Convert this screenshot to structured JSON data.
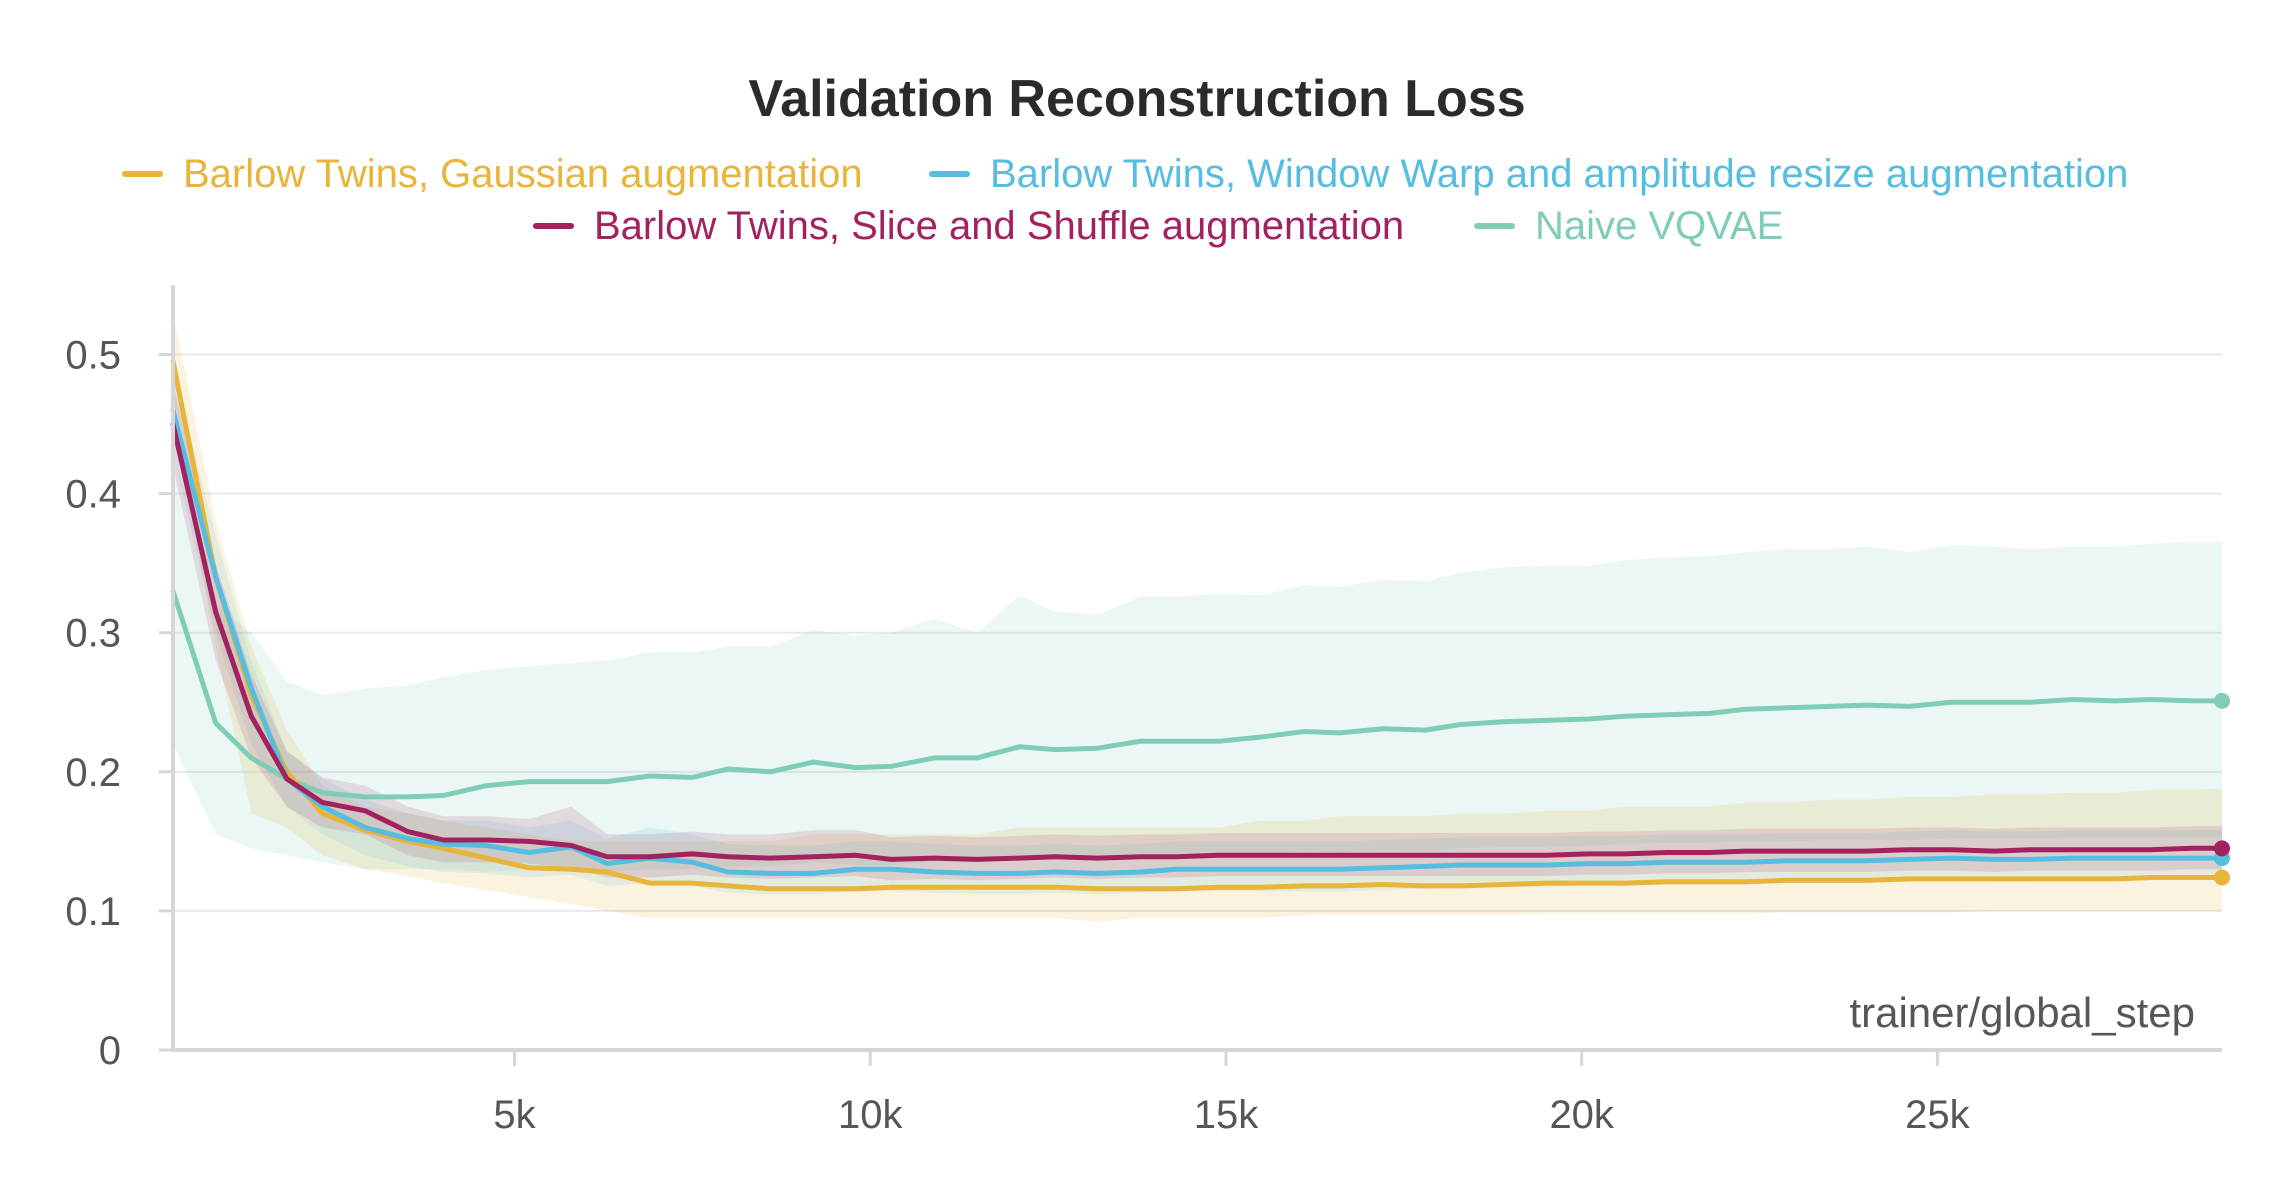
{
  "chart_data": {
    "type": "line",
    "title": "Validation Reconstruction Loss",
    "xlabel": "trainer/global_step",
    "ylabel": "",
    "xlim": [
      200,
      29000
    ],
    "ylim": [
      0,
      0.55
    ],
    "x_ticks": [
      5000,
      10000,
      15000,
      20000,
      25000
    ],
    "x_tick_labels": [
      "5k",
      "10k",
      "15k",
      "20k",
      "25k"
    ],
    "y_ticks": [
      0,
      0.1,
      0.2,
      0.3,
      0.4,
      0.5
    ],
    "y_tick_labels": [
      "0",
      "0.1",
      "0.2",
      "0.3",
      "0.4",
      "0.5"
    ],
    "grid": true,
    "legend_position": "top",
    "x": [
      200,
      800,
      1300,
      1800,
      2300,
      2900,
      3500,
      4000,
      4600,
      5200,
      5800,
      6300,
      6900,
      7500,
      8000,
      8600,
      9200,
      9800,
      10300,
      10900,
      11500,
      12100,
      12600,
      13200,
      13800,
      14300,
      14900,
      15500,
      16100,
      16600,
      17200,
      17800,
      18300,
      18900,
      19500,
      20100,
      20600,
      21200,
      21800,
      22300,
      22900,
      23500,
      24000,
      24600,
      25200,
      25800,
      26300,
      26900,
      27500,
      28000,
      28600,
      29000
    ],
    "series": [
      {
        "name": "Barlow Twins, Gaussian augmentation",
        "color": "#e8b43a",
        "values": [
          0.495,
          0.34,
          0.255,
          0.2,
          0.17,
          0.158,
          0.15,
          0.145,
          0.138,
          0.131,
          0.13,
          0.128,
          0.12,
          0.12,
          0.118,
          0.116,
          0.116,
          0.116,
          0.117,
          0.117,
          0.117,
          0.117,
          0.117,
          0.116,
          0.116,
          0.116,
          0.117,
          0.117,
          0.118,
          0.118,
          0.119,
          0.118,
          0.118,
          0.119,
          0.12,
          0.12,
          0.12,
          0.121,
          0.121,
          0.121,
          0.122,
          0.122,
          0.122,
          0.123,
          0.123,
          0.123,
          0.123,
          0.123,
          0.123,
          0.124,
          0.124,
          0.124
        ],
        "band": [
          [
            0.46,
            0.53
          ],
          [
            0.29,
            0.38
          ],
          [
            0.17,
            0.29
          ],
          [
            0.16,
            0.23
          ],
          [
            0.14,
            0.19
          ],
          [
            0.13,
            0.175
          ],
          [
            0.125,
            0.17
          ],
          [
            0.12,
            0.165
          ],
          [
            0.115,
            0.16
          ],
          [
            0.11,
            0.155
          ],
          [
            0.105,
            0.15
          ],
          [
            0.1,
            0.15
          ],
          [
            0.095,
            0.15
          ],
          [
            0.095,
            0.15
          ],
          [
            0.095,
            0.15
          ],
          [
            0.095,
            0.15
          ],
          [
            0.095,
            0.155
          ],
          [
            0.095,
            0.155
          ],
          [
            0.095,
            0.155
          ],
          [
            0.095,
            0.155
          ],
          [
            0.095,
            0.155
          ],
          [
            0.095,
            0.16
          ],
          [
            0.095,
            0.16
          ],
          [
            0.092,
            0.16
          ],
          [
            0.095,
            0.16
          ],
          [
            0.095,
            0.16
          ],
          [
            0.095,
            0.16
          ],
          [
            0.095,
            0.165
          ],
          [
            0.097,
            0.165
          ],
          [
            0.097,
            0.168
          ],
          [
            0.097,
            0.168
          ],
          [
            0.097,
            0.168
          ],
          [
            0.097,
            0.17
          ],
          [
            0.097,
            0.17
          ],
          [
            0.098,
            0.172
          ],
          [
            0.098,
            0.172
          ],
          [
            0.098,
            0.175
          ],
          [
            0.098,
            0.175
          ],
          [
            0.098,
            0.175
          ],
          [
            0.098,
            0.178
          ],
          [
            0.099,
            0.178
          ],
          [
            0.099,
            0.18
          ],
          [
            0.099,
            0.18
          ],
          [
            0.099,
            0.182
          ],
          [
            0.099,
            0.182
          ],
          [
            0.1,
            0.184
          ],
          [
            0.1,
            0.184
          ],
          [
            0.1,
            0.185
          ],
          [
            0.1,
            0.185
          ],
          [
            0.1,
            0.187
          ],
          [
            0.1,
            0.187
          ],
          [
            0.1,
            0.188
          ]
        ]
      },
      {
        "name": "Barlow Twins, Window Warp and amplitude resize augmentation",
        "color": "#55bde0",
        "values": [
          0.46,
          0.34,
          0.26,
          0.195,
          0.175,
          0.16,
          0.152,
          0.148,
          0.147,
          0.142,
          0.146,
          0.134,
          0.138,
          0.135,
          0.128,
          0.127,
          0.127,
          0.13,
          0.13,
          0.128,
          0.127,
          0.127,
          0.128,
          0.127,
          0.128,
          0.13,
          0.13,
          0.13,
          0.13,
          0.13,
          0.131,
          0.132,
          0.133,
          0.133,
          0.133,
          0.134,
          0.134,
          0.135,
          0.135,
          0.135,
          0.136,
          0.136,
          0.136,
          0.137,
          0.138,
          0.137,
          0.137,
          0.138,
          0.138,
          0.138,
          0.138,
          0.138
        ],
        "band": [
          [
            0.43,
            0.49
          ],
          [
            0.3,
            0.37
          ],
          [
            0.22,
            0.28
          ],
          [
            0.175,
            0.215
          ],
          [
            0.155,
            0.195
          ],
          [
            0.14,
            0.18
          ],
          [
            0.132,
            0.17
          ],
          [
            0.128,
            0.165
          ],
          [
            0.127,
            0.165
          ],
          [
            0.124,
            0.16
          ],
          [
            0.126,
            0.165
          ],
          [
            0.118,
            0.152
          ],
          [
            0.12,
            0.16
          ],
          [
            0.118,
            0.155
          ],
          [
            0.113,
            0.148
          ],
          [
            0.112,
            0.147
          ],
          [
            0.112,
            0.147
          ],
          [
            0.114,
            0.15
          ],
          [
            0.114,
            0.15
          ],
          [
            0.113,
            0.148
          ],
          [
            0.112,
            0.147
          ],
          [
            0.112,
            0.147
          ],
          [
            0.113,
            0.148
          ],
          [
            0.112,
            0.147
          ],
          [
            0.113,
            0.148
          ],
          [
            0.114,
            0.15
          ],
          [
            0.114,
            0.15
          ],
          [
            0.114,
            0.15
          ],
          [
            0.114,
            0.15
          ],
          [
            0.114,
            0.15
          ],
          [
            0.115,
            0.151
          ],
          [
            0.116,
            0.152
          ],
          [
            0.117,
            0.153
          ],
          [
            0.117,
            0.153
          ],
          [
            0.117,
            0.153
          ],
          [
            0.118,
            0.154
          ],
          [
            0.118,
            0.154
          ],
          [
            0.119,
            0.155
          ],
          [
            0.119,
            0.155
          ],
          [
            0.119,
            0.155
          ],
          [
            0.12,
            0.156
          ],
          [
            0.12,
            0.156
          ],
          [
            0.12,
            0.156
          ],
          [
            0.121,
            0.157
          ],
          [
            0.122,
            0.158
          ],
          [
            0.121,
            0.157
          ],
          [
            0.121,
            0.157
          ],
          [
            0.122,
            0.158
          ],
          [
            0.122,
            0.158
          ],
          [
            0.122,
            0.158
          ],
          [
            0.122,
            0.158
          ],
          [
            0.122,
            0.158
          ]
        ]
      },
      {
        "name": "Barlow Twins, Slice and Shuffle augmentation",
        "color": "#a3215e",
        "values": [
          0.45,
          0.315,
          0.24,
          0.195,
          0.178,
          0.172,
          0.157,
          0.151,
          0.151,
          0.15,
          0.147,
          0.139,
          0.139,
          0.141,
          0.139,
          0.138,
          0.139,
          0.14,
          0.137,
          0.138,
          0.137,
          0.138,
          0.139,
          0.138,
          0.139,
          0.139,
          0.14,
          0.14,
          0.14,
          0.14,
          0.14,
          0.14,
          0.14,
          0.14,
          0.14,
          0.141,
          0.141,
          0.142,
          0.142,
          0.143,
          0.143,
          0.143,
          0.143,
          0.144,
          0.144,
          0.143,
          0.144,
          0.144,
          0.144,
          0.144,
          0.145,
          0.145
        ],
        "band": [
          [
            0.42,
            0.48
          ],
          [
            0.28,
            0.35
          ],
          [
            0.21,
            0.27
          ],
          [
            0.175,
            0.215
          ],
          [
            0.16,
            0.196
          ],
          [
            0.155,
            0.19
          ],
          [
            0.14,
            0.175
          ],
          [
            0.135,
            0.168
          ],
          [
            0.135,
            0.168
          ],
          [
            0.134,
            0.166
          ],
          [
            0.131,
            0.175
          ],
          [
            0.124,
            0.155
          ],
          [
            0.124,
            0.155
          ],
          [
            0.126,
            0.157
          ],
          [
            0.124,
            0.155
          ],
          [
            0.123,
            0.155
          ],
          [
            0.124,
            0.158
          ],
          [
            0.125,
            0.158
          ],
          [
            0.122,
            0.153
          ],
          [
            0.123,
            0.154
          ],
          [
            0.122,
            0.153
          ],
          [
            0.123,
            0.154
          ],
          [
            0.124,
            0.155
          ],
          [
            0.123,
            0.154
          ],
          [
            0.124,
            0.155
          ],
          [
            0.124,
            0.155
          ],
          [
            0.125,
            0.156
          ],
          [
            0.125,
            0.156
          ],
          [
            0.125,
            0.156
          ],
          [
            0.125,
            0.156
          ],
          [
            0.125,
            0.156
          ],
          [
            0.125,
            0.156
          ],
          [
            0.125,
            0.156
          ],
          [
            0.125,
            0.156
          ],
          [
            0.125,
            0.156
          ],
          [
            0.126,
            0.157
          ],
          [
            0.126,
            0.157
          ],
          [
            0.127,
            0.158
          ],
          [
            0.127,
            0.158
          ],
          [
            0.128,
            0.159
          ],
          [
            0.128,
            0.159
          ],
          [
            0.128,
            0.159
          ],
          [
            0.128,
            0.159
          ],
          [
            0.129,
            0.16
          ],
          [
            0.129,
            0.16
          ],
          [
            0.128,
            0.159
          ],
          [
            0.129,
            0.16
          ],
          [
            0.129,
            0.16
          ],
          [
            0.129,
            0.16
          ],
          [
            0.129,
            0.16
          ],
          [
            0.13,
            0.161
          ],
          [
            0.13,
            0.161
          ]
        ]
      },
      {
        "name": "Naive VQVAE",
        "color": "#7fcdb8",
        "values": [
          0.33,
          0.235,
          0.21,
          0.195,
          0.185,
          0.182,
          0.182,
          0.183,
          0.19,
          0.193,
          0.193,
          0.193,
          0.197,
          0.196,
          0.202,
          0.2,
          0.207,
          0.203,
          0.204,
          0.21,
          0.21,
          0.218,
          0.216,
          0.217,
          0.222,
          0.222,
          0.222,
          0.225,
          0.229,
          0.228,
          0.231,
          0.23,
          0.234,
          0.236,
          0.237,
          0.238,
          0.24,
          0.241,
          0.242,
          0.245,
          0.246,
          0.247,
          0.248,
          0.247,
          0.25,
          0.25,
          0.25,
          0.252,
          0.251,
          0.252,
          0.251,
          0.251
        ],
        "band": [
          [
            0.22,
            0.43
          ],
          [
            0.155,
            0.32
          ],
          [
            0.145,
            0.3
          ],
          [
            0.14,
            0.265
          ],
          [
            0.135,
            0.255
          ],
          [
            0.13,
            0.26
          ],
          [
            0.13,
            0.262
          ],
          [
            0.13,
            0.268
          ],
          [
            0.128,
            0.273
          ],
          [
            0.13,
            0.276
          ],
          [
            0.13,
            0.278
          ],
          [
            0.128,
            0.28
          ],
          [
            0.13,
            0.286
          ],
          [
            0.13,
            0.286
          ],
          [
            0.132,
            0.29
          ],
          [
            0.132,
            0.29
          ],
          [
            0.135,
            0.302
          ],
          [
            0.133,
            0.298
          ],
          [
            0.133,
            0.3
          ],
          [
            0.135,
            0.31
          ],
          [
            0.135,
            0.3
          ],
          [
            0.14,
            0.327
          ],
          [
            0.138,
            0.315
          ],
          [
            0.138,
            0.313
          ],
          [
            0.14,
            0.326
          ],
          [
            0.14,
            0.326
          ],
          [
            0.14,
            0.328
          ],
          [
            0.141,
            0.327
          ],
          [
            0.143,
            0.334
          ],
          [
            0.142,
            0.333
          ],
          [
            0.144,
            0.338
          ],
          [
            0.143,
            0.337
          ],
          [
            0.145,
            0.343
          ],
          [
            0.146,
            0.347
          ],
          [
            0.146,
            0.348
          ],
          [
            0.147,
            0.348
          ],
          [
            0.148,
            0.352
          ],
          [
            0.149,
            0.354
          ],
          [
            0.149,
            0.355
          ],
          [
            0.15,
            0.358
          ],
          [
            0.15,
            0.36
          ],
          [
            0.151,
            0.36
          ],
          [
            0.151,
            0.362
          ],
          [
            0.151,
            0.358
          ],
          [
            0.152,
            0.363
          ],
          [
            0.152,
            0.362
          ],
          [
            0.152,
            0.36
          ],
          [
            0.153,
            0.362
          ],
          [
            0.153,
            0.362
          ],
          [
            0.153,
            0.364
          ],
          [
            0.153,
            0.365
          ],
          [
            0.153,
            0.365
          ]
        ]
      }
    ]
  }
}
